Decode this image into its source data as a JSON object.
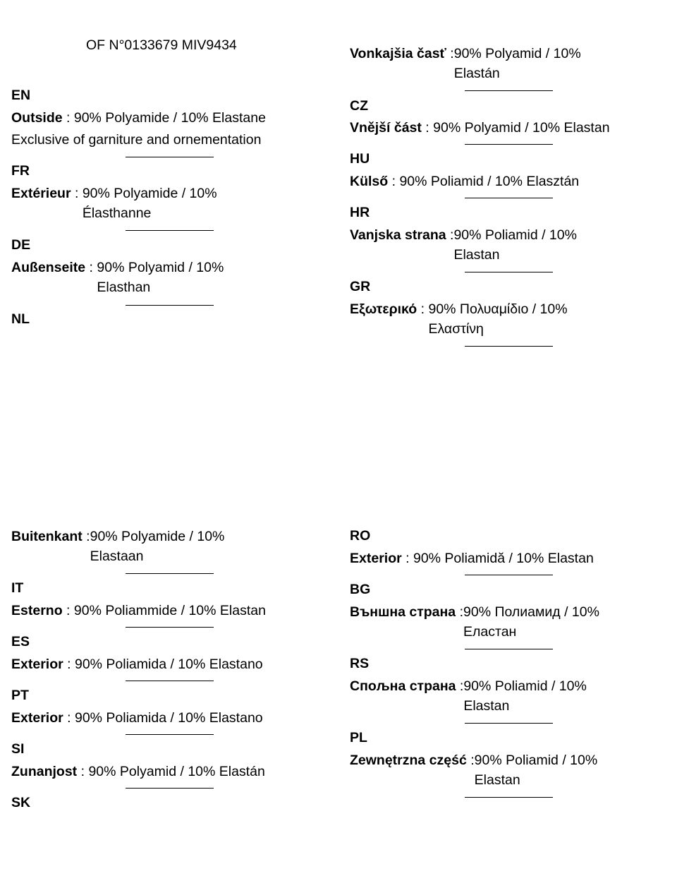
{
  "header": {
    "of_number": "OF N°0133679 MIV9434"
  },
  "left_top": {
    "en": {
      "code": "EN",
      "label": "Outside",
      "sep": " : ",
      "value": "90% Polyamide / 10% Elastane",
      "note": "Exclusive of garniture and ornementation"
    },
    "fr": {
      "code": "FR",
      "label": "Extérieur",
      "sep": " : ",
      "value_1": "90% Polyamide / 10%",
      "value_2": "Élasthanne"
    },
    "de": {
      "code": "DE",
      "label": "Außenseite",
      "sep": " : ",
      "value_1": "90% Polyamid / 10%",
      "value_2": "Elasthan"
    },
    "nl": {
      "code": "NL"
    }
  },
  "right_top": {
    "sk": {
      "label": "Vonkajšia časť",
      "sep": " :",
      "value_1": "90% Polyamid / 10%",
      "value_2": "Elastán"
    },
    "cz": {
      "code": "CZ",
      "label": "Vnější část",
      "sep": " : ",
      "value": "90% Polyamid / 10% Elastan"
    },
    "hu": {
      "code": "HU",
      "label": "Külső",
      "sep": " : ",
      "value": "90% Poliamid / 10% Elasztán"
    },
    "hr": {
      "code": "HR",
      "label": "Vanjska strana",
      "sep": " :",
      "value_1": "90% Poliamid / 10%",
      "value_2": "Elastan"
    },
    "gr": {
      "code": "GR",
      "label": "Εξωτερικό",
      "sep": " : ",
      "value_1": "90% Πολυαμίδιο / 10%",
      "value_2": "Ελαστίνη"
    }
  },
  "left_bottom": {
    "nl": {
      "label": "Buitenkant",
      "sep": " :",
      "value_1": "90% Polyamide / 10%",
      "value_2": "Elastaan"
    },
    "it": {
      "code": "IT",
      "label": "Esterno",
      "sep": " : ",
      "value": "90% Poliammide / 10% Elastan"
    },
    "es": {
      "code": "ES",
      "label": "Exterior",
      "sep": " : ",
      "value": "90% Poliamida / 10% Elastano"
    },
    "pt": {
      "code": "PT",
      "label": "Exterior",
      "sep": " : ",
      "value": "90% Poliamida / 10% Elastano"
    },
    "si": {
      "code": "SI",
      "label": "Zunanjost",
      "sep": " : ",
      "value": "90% Polyamid / 10% Elastán"
    },
    "sk": {
      "code": "SK"
    }
  },
  "right_bottom": {
    "ro": {
      "code": "RO",
      "label": "Exterior",
      "sep": " : ",
      "value": "90% Poliamidă / 10% Elastan"
    },
    "bg": {
      "code": "BG",
      "label": "Външна страна",
      "sep": " :",
      "value_1": "90% Полиамид / 10%",
      "value_2": "Еластан"
    },
    "rs": {
      "code": "RS",
      "label": "Спољна страна",
      "sep": " :",
      "value_1": "90% Poliamid / 10%",
      "value_2": "Elastan"
    },
    "pl": {
      "code": "PL",
      "label": "Zewnętrzna część",
      "sep": " :",
      "value_1": "90% Poliamid / 10%",
      "value_2": "Elastan"
    }
  }
}
